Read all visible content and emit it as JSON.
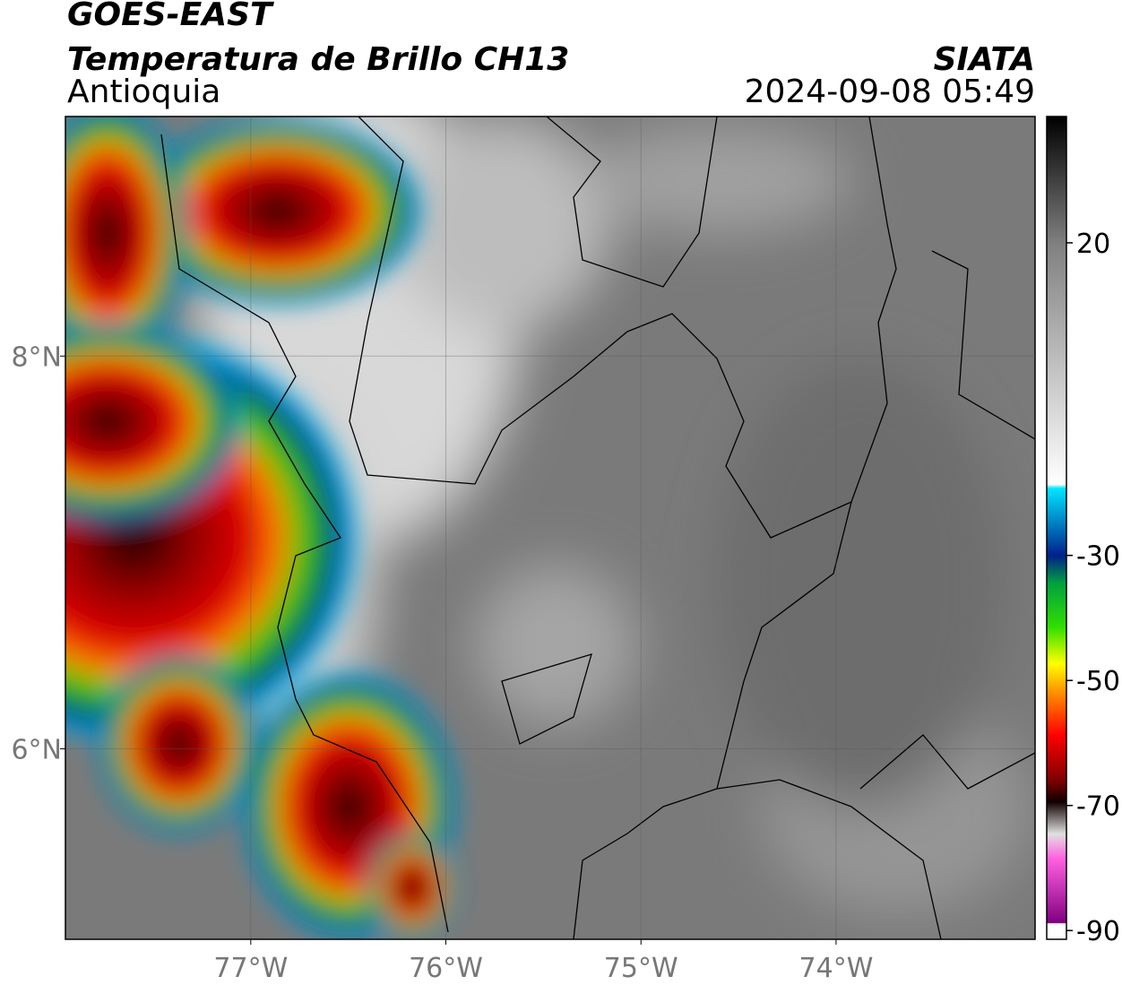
{
  "header": {
    "title": "GOES-EAST",
    "subtitle": "Temperatura de Brillo CH13",
    "region": "Antioquia",
    "agency": "SIATA",
    "datetime": "2024-09-08 05:49"
  },
  "map": {
    "xlim": [
      -77.95,
      -72.98
    ],
    "ylim": [
      5.03,
      9.22
    ],
    "xticks": [
      {
        "value": -77,
        "label": "77°W"
      },
      {
        "value": -76,
        "label": "76°W"
      },
      {
        "value": -75,
        "label": "75°W"
      },
      {
        "value": -74,
        "label": "74°W"
      }
    ],
    "yticks": [
      {
        "value": 6,
        "label": "6°N"
      },
      {
        "value": 8,
        "label": "8°N"
      }
    ]
  },
  "colorbar": {
    "lim": [
      -91.4,
      40.2
    ],
    "ticks": [
      20,
      -30,
      -50,
      -70,
      -90
    ]
  }
}
